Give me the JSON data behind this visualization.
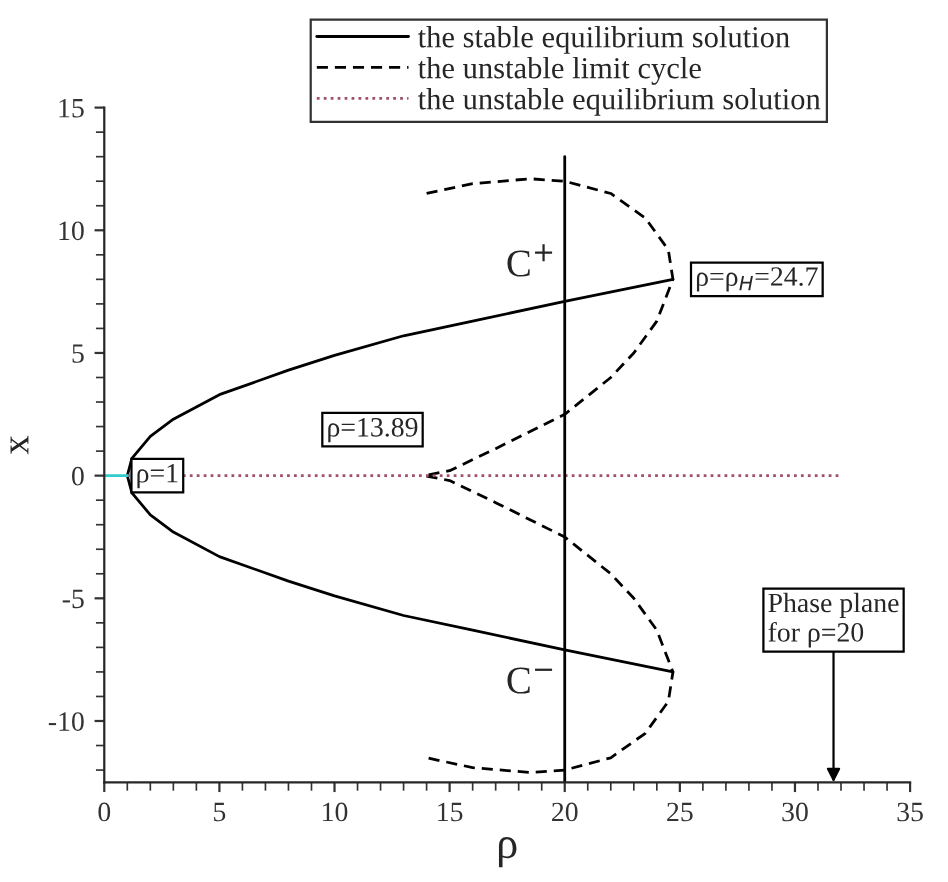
{
  "chart_data": {
    "type": "line",
    "xlabel": "ρ",
    "ylabel": "x",
    "xlim": [
      0,
      35
    ],
    "ylim": [
      -12.5,
      15
    ],
    "xticks": [
      0,
      5,
      10,
      15,
      20,
      25,
      30,
      35
    ],
    "yticks": [
      -10,
      -5,
      0,
      5,
      10,
      15
    ],
    "grid": false,
    "legend": "top",
    "marker": "none",
    "series": [
      {
        "name": "the stable equilibrium solution",
        "color": "#000000",
        "line_style": "solid",
        "x": [
          24.7,
          20,
          16,
          13,
          10,
          8,
          5,
          3,
          2,
          1.2,
          1,
          1.2,
          2,
          3,
          5,
          8,
          10,
          13,
          16,
          20,
          24.7
        ],
        "values": [
          8.0,
          7.1,
          6.3,
          5.7,
          4.9,
          4.3,
          3.3,
          2.3,
          1.6,
          0.7,
          0,
          -0.7,
          -1.6,
          -2.3,
          -3.3,
          -4.3,
          -4.9,
          -5.7,
          -6.3,
          -7.1,
          -8.0
        ]
      },
      {
        "name": "the unstable limit cycle",
        "color": "#000000",
        "line_style": "dashed",
        "x": [
          14,
          16,
          18.5,
          20,
          22,
          23.5,
          24.5,
          24.7,
          24,
          23,
          22,
          20,
          17,
          15,
          13.89,
          15,
          17,
          20,
          22,
          23,
          24,
          24.7,
          24.5,
          23.5,
          22,
          20,
          18.5,
          16,
          14
        ],
        "values": [
          11.5,
          11.9,
          12.1,
          12.0,
          11.5,
          10.5,
          9.2,
          8.0,
          6.3,
          5.0,
          4.0,
          2.5,
          1.1,
          0.2,
          0,
          -0.2,
          -1.1,
          -2.5,
          -4.0,
          -5.0,
          -6.3,
          -8.0,
          -9.2,
          -10.5,
          -11.5,
          -12.0,
          -12.1,
          -11.9,
          -11.5
        ]
      },
      {
        "name": "the unstable equilibrium solution",
        "color": "#a0506e",
        "line_style": "dotted",
        "x": [
          1,
          32
        ],
        "values": [
          0,
          0
        ]
      },
      {
        "color": "#33cccc",
        "line_style": "solid",
        "x": [
          0,
          1
        ],
        "values": [
          0,
          0
        ]
      },
      {
        "color": "#000000",
        "line_style": "solid",
        "x": [
          20,
          20
        ],
        "values": [
          -12.5,
          13
        ]
      }
    ],
    "annotations": [
      {
        "text": "C$^{+}$",
        "x": 20,
        "y": 7.1
      },
      {
        "text": "C$^{−}$",
        "x": 20,
        "y": -7.1
      },
      {
        "text": "ρ=ρ$_{H}$=24.7",
        "x": 24.7,
        "y": 8
      },
      {
        "text": "ρ=13.89",
        "x": 13.89,
        "y": 0
      },
      {
        "text": "ρ=1",
        "x": 1,
        "y": 0
      },
      "Phase plane\nfor ρ=20"
    ]
  }
}
